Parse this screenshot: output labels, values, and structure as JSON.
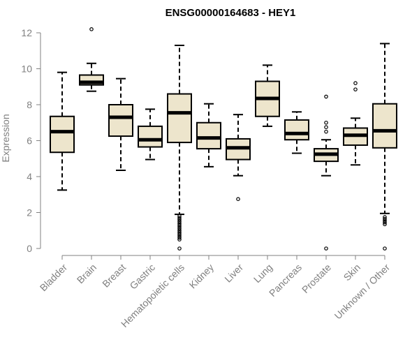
{
  "chart_data": {
    "type": "box",
    "title": "ENSG00000164683 - HEY1",
    "xlabel": "",
    "ylabel": "Expression",
    "ylim": [
      0,
      12
    ],
    "yticks": [
      0,
      2,
      4,
      6,
      8,
      10,
      12
    ],
    "colors": {
      "box_fill": "#ede5cc",
      "stroke": "#000000",
      "axis": "#808080"
    },
    "categories": [
      "Bladder",
      "Brain",
      "Breast",
      "Gastric",
      "Hematopoietic cells",
      "Kidney",
      "Liver",
      "Lung",
      "Pancreas",
      "Prostate",
      "Skin",
      "Unknown / Other"
    ],
    "boxes": [
      {
        "label": "Bladder",
        "min": 3.25,
        "q1": 5.35,
        "median": 6.5,
        "q3": 7.35,
        "max": 9.8,
        "outliers": []
      },
      {
        "label": "Brain",
        "min": 8.75,
        "q1": 9.1,
        "median": 9.25,
        "q3": 9.65,
        "max": 10.3,
        "outliers": [
          12.2
        ]
      },
      {
        "label": "Breast",
        "min": 4.35,
        "q1": 6.25,
        "median": 7.3,
        "q3": 8.0,
        "max": 9.45,
        "outliers": []
      },
      {
        "label": "Gastric",
        "min": 4.95,
        "q1": 5.65,
        "median": 6.05,
        "q3": 6.8,
        "max": 7.75,
        "outliers": []
      },
      {
        "label": "Hematopoietic cells",
        "min": 1.9,
        "q1": 5.9,
        "median": 7.55,
        "q3": 8.6,
        "max": 11.3,
        "outliers": [
          1.8,
          1.7,
          1.6,
          1.5,
          1.4,
          1.3,
          1.2,
          1.1,
          1.0,
          0.9,
          0.8,
          0.7,
          0.6,
          0.5,
          0.0
        ]
      },
      {
        "label": "Kidney",
        "min": 4.55,
        "q1": 5.55,
        "median": 6.15,
        "q3": 7.0,
        "max": 8.05,
        "outliers": []
      },
      {
        "label": "Liver",
        "min": 4.05,
        "q1": 4.95,
        "median": 5.6,
        "q3": 6.1,
        "max": 7.45,
        "outliers": [
          2.75
        ]
      },
      {
        "label": "Lung",
        "min": 6.8,
        "q1": 7.35,
        "median": 8.35,
        "q3": 9.3,
        "max": 10.2,
        "outliers": []
      },
      {
        "label": "Pancreas",
        "min": 5.3,
        "q1": 6.05,
        "median": 6.4,
        "q3": 7.15,
        "max": 7.6,
        "outliers": []
      },
      {
        "label": "Prostate",
        "min": 4.05,
        "q1": 4.85,
        "median": 5.25,
        "q3": 5.55,
        "max": 6.05,
        "outliers": [
          8.45,
          7.0,
          6.75,
          6.5,
          0.0
        ]
      },
      {
        "label": "Skin",
        "min": 4.65,
        "q1": 5.75,
        "median": 6.3,
        "q3": 6.7,
        "max": 7.25,
        "outliers": [
          9.2,
          8.85
        ]
      },
      {
        "label": "Unknown / Other",
        "min": 1.95,
        "q1": 5.6,
        "median": 6.55,
        "q3": 8.05,
        "max": 11.4,
        "outliers": [
          1.75,
          1.65,
          1.55,
          1.45,
          1.35,
          0.0
        ]
      }
    ]
  }
}
